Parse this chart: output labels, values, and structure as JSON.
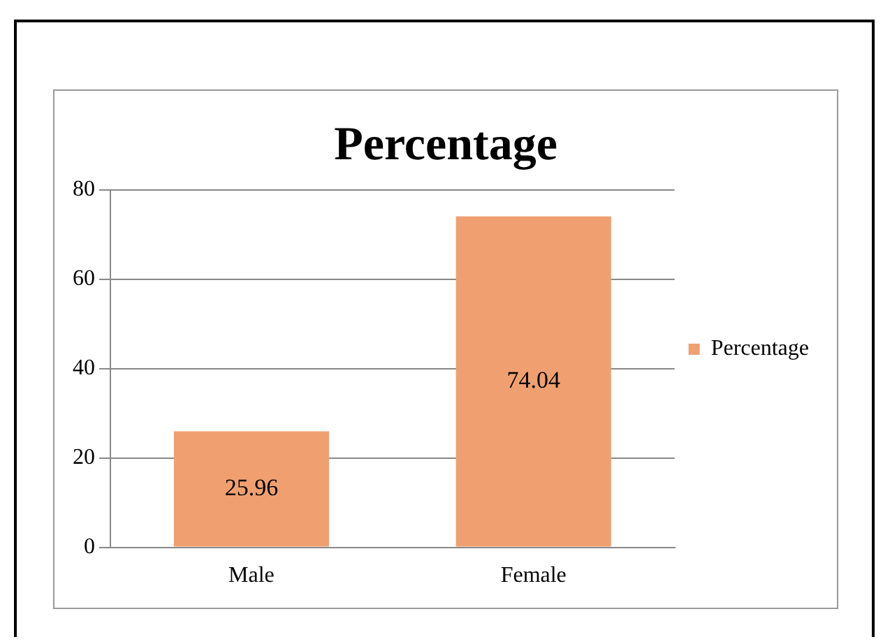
{
  "chart_data": {
    "type": "bar",
    "title": "Percentage",
    "categories": [
      "Male",
      "Female"
    ],
    "series": [
      {
        "name": "Percentage",
        "color": "#f0a070",
        "values": [
          25.96,
          74.04
        ]
      }
    ],
    "ylim": [
      0,
      80
    ],
    "yticks": [
      0,
      20,
      40,
      60,
      80
    ],
    "grid": "y",
    "legend": "right",
    "data_labels": true
  }
}
